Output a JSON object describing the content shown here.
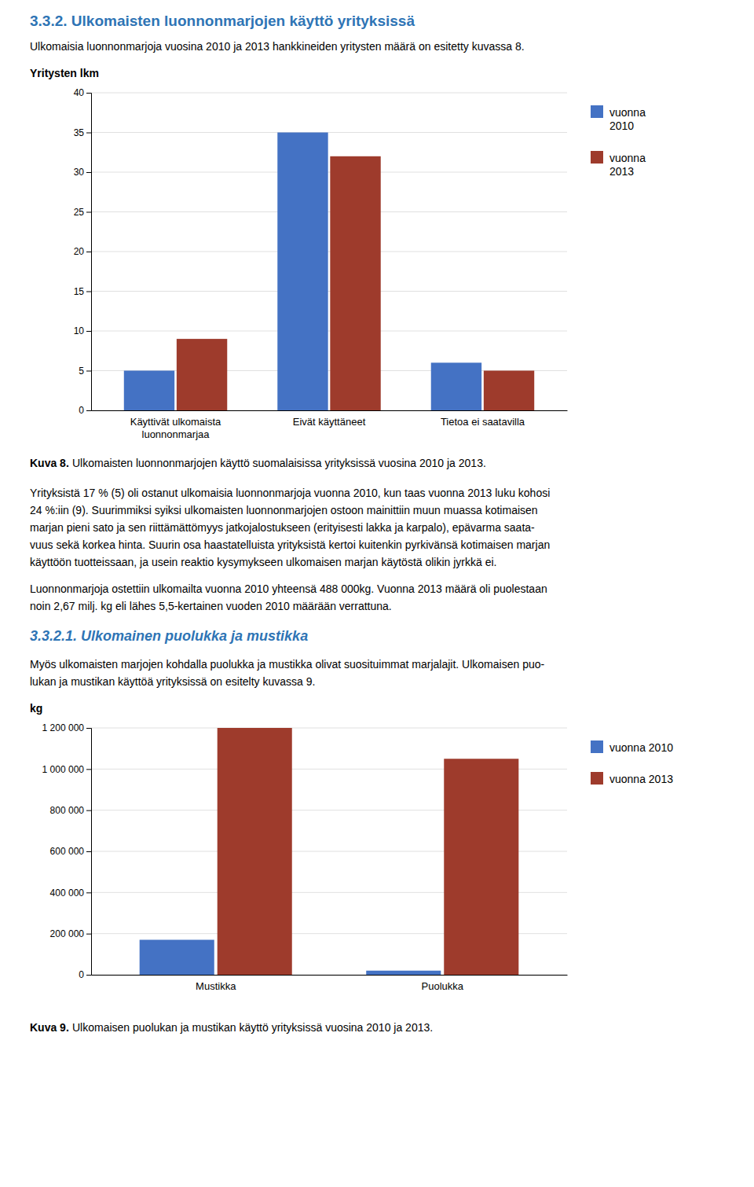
{
  "heading": "3.3.2. Ulkomaisten luonnonmarjojen käyttö yrityksissä",
  "heading_color": "#2E74B5",
  "intro": "Ulkomaisia luonnonmarjoja vuosina 2010 ja 2013 hankkineiden yritysten määrä on esitetty kuvassa 8.",
  "body_text": [
    "Yrityksistä 17 % (5) oli ostanut ulkomaisia luonnonmarjoja vuonna 2010, kun taas vuonna 2013 luku kohosi",
    "24 %:iin (9). Suurimmiksi syiksi ulkomaisten luonnonmarjojen ostoon mainittiin muun muassa kotimaisen",
    "marjan pieni sato ja sen riittämättömyys jatkojalostukseen (erityisesti lakka ja karpalo), epävarma saata-",
    "vuus sekä korkea hinta. Suurin osa haastatelluista yrityksistä kertoi kuitenkin pyrkivänsä kotimaisen marjan",
    "käyttöön tuotteissaan, ja usein reaktio kysymykseen ulkomaisen marjan käytöstä olikin jyrkkä ei."
  ],
  "body_text_2": [
    "Luonnonmarjoja ostettiin ulkomailta vuonna 2010 yhteensä 488 000kg. Vuonna 2013 määrä oli puolestaan",
    "noin 2,67 milj. kg eli lähes 5,5-kertainen vuoden 2010 määrään verrattuna."
  ],
  "section_heading": "3.3.2.1. Ulkomainen puolukka ja mustikka",
  "section_intro": [
    "Myös ulkomaisten marjojen kohdalla puolukka ja mustikka olivat suosituimmat marjalajit. Ulkomaisen puo-",
    "lukan ja mustikan käyttöä yrityksissä on esitelty kuvassa 9."
  ],
  "chart_data": [
    {
      "type": "bar",
      "y_label": "Yritysten lkm",
      "categories": [
        "Käyttivät ulkomaista\nluonnonmarjaa",
        "Eivät käyttäneet",
        "Tietoa ei saatavilla"
      ],
      "series": [
        {
          "name": "vuonna\n2010",
          "color": "#4472C4",
          "values": [
            5,
            35,
            6
          ]
        },
        {
          "name": "vuonna\n2013",
          "color": "#9E3B2C",
          "values": [
            9,
            32,
            5
          ]
        }
      ],
      "ylim": [
        0,
        40
      ],
      "yticks": [
        0,
        5,
        10,
        15,
        20,
        25,
        30,
        35,
        40
      ],
      "grid": true,
      "legend": "right",
      "caption_label": "Kuva 8.",
      "caption": "Ulkomaisten luonnonmarjojen käyttö suomalaisissa yrityksissä vuosina 2010 ja 2013."
    },
    {
      "type": "bar",
      "y_label": "kg",
      "categories": [
        "Mustikka",
        "Puolukka"
      ],
      "series": [
        {
          "name": "vuonna 2010",
          "color": "#4472C4",
          "values": [
            170000,
            20000
          ]
        },
        {
          "name": "vuonna 2013",
          "color": "#9E3B2C",
          "values": [
            1200000,
            1050000
          ]
        }
      ],
      "ylim": [
        0,
        1200000
      ],
      "yticks": [
        0,
        {
          "value": 200000,
          "label": "200 000"
        },
        {
          "value": 400000,
          "label": "400 000"
        },
        {
          "value": 600000,
          "label": "600 000"
        },
        {
          "value": 800000,
          "label": "800 000"
        },
        {
          "value": 1000000,
          "label": "1 000 000"
        },
        {
          "value": 1200000,
          "label": "1 200 000"
        }
      ],
      "grid": true,
      "legend": "right",
      "caption_label": "Kuva 9.",
      "caption": "Ulkomaisen puolukan ja mustikan käyttö yrityksissä vuosina 2010 ja 2013."
    }
  ]
}
